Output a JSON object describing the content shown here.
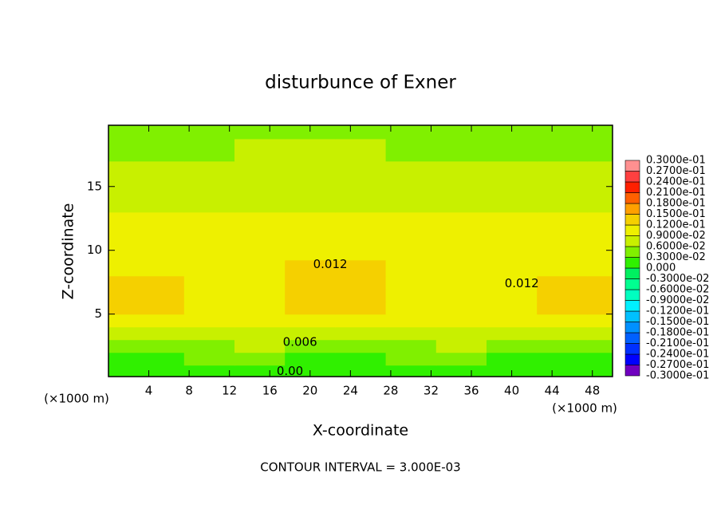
{
  "chart_data": {
    "type": "contour",
    "title": "disturbunce of Exner",
    "x_label": "X-coordinate",
    "y_label": "Z-coordinate",
    "x_unit_label": "(×1000 m)",
    "x_unit_label_right": "(×1000 m)",
    "footer": "CONTOUR INTERVAL = 3.000E-03",
    "xlim": [
      0,
      50
    ],
    "ylim": [
      0.1,
      19.8
    ],
    "xticks": [
      4,
      8,
      12,
      16,
      20,
      24,
      28,
      32,
      36,
      40,
      44,
      48
    ],
    "yticks": [
      5,
      10,
      15
    ],
    "x": [
      0,
      5,
      10,
      15,
      20,
      25,
      30,
      35,
      40,
      45,
      50
    ],
    "z": [
      0.5,
      1.5,
      2.5,
      3.5,
      4.5,
      5.5,
      6.5,
      7.5,
      8.5,
      10,
      12,
      14,
      16,
      18,
      19.5
    ],
    "values": [
      [
        0.0005,
        0.0005,
        0.0007,
        0.0008,
        0.0006,
        0.0005,
        0.0006,
        0.0008,
        0.0006,
        0.0005,
        0.0005
      ],
      [
        0.0025,
        0.0026,
        0.0032,
        0.0035,
        0.0028,
        0.0026,
        0.003,
        0.0035,
        0.0028,
        0.0026,
        0.0025
      ],
      [
        0.005,
        0.0052,
        0.0058,
        0.0061,
        0.0056,
        0.0052,
        0.0057,
        0.0061,
        0.0056,
        0.0052,
        0.005
      ],
      [
        0.0075,
        0.0077,
        0.0083,
        0.0085,
        0.008,
        0.0077,
        0.0082,
        0.0085,
        0.008,
        0.0077,
        0.0075
      ],
      [
        0.0095,
        0.0096,
        0.0098,
        0.0099,
        0.0098,
        0.0097,
        0.0098,
        0.0099,
        0.0098,
        0.0096,
        0.0095
      ],
      [
        0.0122,
        0.0121,
        0.0112,
        0.0114,
        0.0122,
        0.0122,
        0.0113,
        0.011,
        0.0112,
        0.0121,
        0.0122
      ],
      [
        0.0128,
        0.0126,
        0.0115,
        0.0118,
        0.0132,
        0.0131,
        0.0116,
        0.0114,
        0.0118,
        0.0126,
        0.0128
      ],
      [
        0.0124,
        0.0122,
        0.0116,
        0.0119,
        0.0128,
        0.0127,
        0.0117,
        0.0115,
        0.0117,
        0.0122,
        0.0124
      ],
      [
        0.0118,
        0.0115,
        0.0114,
        0.0116,
        0.0122,
        0.0121,
        0.0115,
        0.0113,
        0.0114,
        0.0116,
        0.0118
      ],
      [
        0.011,
        0.0109,
        0.0108,
        0.011,
        0.0113,
        0.0112,
        0.0109,
        0.0107,
        0.0107,
        0.0109,
        0.011
      ],
      [
        0.0095,
        0.0095,
        0.0096,
        0.0097,
        0.0098,
        0.0098,
        0.0096,
        0.0095,
        0.0094,
        0.0094,
        0.0095
      ],
      [
        0.0085,
        0.0085,
        0.0086,
        0.0087,
        0.0088,
        0.0088,
        0.0086,
        0.0085,
        0.0084,
        0.0084,
        0.0085
      ],
      [
        0.0075,
        0.0075,
        0.0076,
        0.0077,
        0.0078,
        0.0078,
        0.0076,
        0.0075,
        0.0074,
        0.0074,
        0.0075
      ],
      [
        0.0058,
        0.0058,
        0.0059,
        0.006,
        0.0061,
        0.0061,
        0.0059,
        0.0058,
        0.0057,
        0.0057,
        0.0058
      ],
      [
        0.005,
        0.005,
        0.0051,
        0.0052,
        0.0052,
        0.0052,
        0.0051,
        0.005,
        0.0049,
        0.0049,
        0.005
      ]
    ],
    "levels": [
      {
        "value": -0.03,
        "label": "-0.3000e-01"
      },
      {
        "value": -0.027,
        "label": "-0.2700e-01"
      },
      {
        "value": -0.024,
        "label": "-0.2400e-01"
      },
      {
        "value": -0.021,
        "label": "-0.2100e-01"
      },
      {
        "value": -0.018,
        "label": "-0.1800e-01"
      },
      {
        "value": -0.015,
        "label": "-0.1500e-01"
      },
      {
        "value": -0.012,
        "label": "-0.1200e-01"
      },
      {
        "value": -0.009,
        "label": "-0.9000e-02"
      },
      {
        "value": -0.006,
        "label": "-0.6000e-02"
      },
      {
        "value": -0.003,
        "label": "-0.3000e-02"
      },
      {
        "value": 0,
        "label": "0.000"
      },
      {
        "value": 0.003,
        "label": "0.3000e-02"
      },
      {
        "value": 0.006,
        "label": "0.6000e-02"
      },
      {
        "value": 0.009,
        "label": "0.9000e-02"
      },
      {
        "value": 0.012,
        "label": "0.1200e-01"
      },
      {
        "value": 0.015,
        "label": "0.1500e-01"
      },
      {
        "value": 0.018,
        "label": "0.1800e-01"
      },
      {
        "value": 0.021,
        "label": "0.2100e-01"
      },
      {
        "value": 0.024,
        "label": "0.2400e-01"
      },
      {
        "value": 0.027,
        "label": "0.2700e-01"
      },
      {
        "value": 0.03,
        "label": "0.3000e-01"
      }
    ],
    "colors": [
      "#7000c0",
      "#0000ff",
      "#0030ff",
      "#0060ff",
      "#0090ff",
      "#00c0ff",
      "#00f0ff",
      "#00ffc0",
      "#00ff90",
      "#00f060",
      "#30f000",
      "#80f000",
      "#c8f000",
      "#eef000",
      "#f5d000",
      "#ffa000",
      "#ff6000",
      "#ff2000",
      "#ff4040",
      "#ff9090"
    ],
    "contour_labels": [
      {
        "value": 0.012,
        "label": "0.012",
        "x": 22,
        "z": 8.9
      },
      {
        "value": 0.012,
        "label": "0.012",
        "x": 41,
        "z": 7.4
      },
      {
        "value": 0.006,
        "label": "0.006",
        "x": 19,
        "z": 2.8
      },
      {
        "value": 0,
        "label": "0.00",
        "x": 18,
        "z": 0.5
      }
    ]
  }
}
